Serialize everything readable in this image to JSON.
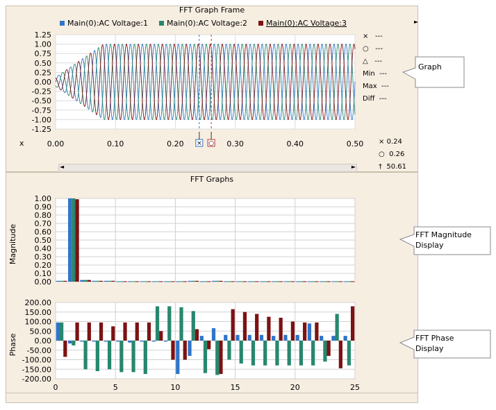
{
  "frame_title": "FFT Graph Frame",
  "legend": [
    {
      "label": "Main(0):AC Voltage:1",
      "color": "#2f74c8"
    },
    {
      "label": "Main(0):AC Voltage:2",
      "color": "#27876e"
    },
    {
      "label": "Main(0):AC Voltage:3",
      "color": "#7c1212"
    }
  ],
  "readouts": [
    {
      "symbol": "×",
      "value": "---"
    },
    {
      "symbol": "○",
      "value": "---"
    },
    {
      "symbol": "△",
      "value": "---"
    }
  ],
  "stats": [
    {
      "label": "Min",
      "value": "---"
    },
    {
      "label": "Max",
      "value": "---"
    },
    {
      "label": "Diff",
      "value": "---"
    }
  ],
  "x_axis_label": "x",
  "cursor_values": [
    {
      "symbol": "×",
      "value": "0.24"
    },
    {
      "symbol": "○",
      "value": "0.26"
    },
    {
      "symbol": "†",
      "value": "50.61"
    }
  ],
  "fft_title": "FFT Graphs",
  "magnitude_ylabel": "Magnitude",
  "phase_ylabel": "Phase",
  "callouts": {
    "graph": "Graph",
    "fft_mag": [
      "FFT Magnitude",
      "Display"
    ],
    "fft_phase": [
      "FFT Phase",
      "Display"
    ]
  },
  "chart_data": [
    {
      "type": "line",
      "title": "",
      "xlabel": "x",
      "ylabel": "",
      "xlim": [
        0,
        0.5
      ],
      "ylim": [
        -1.25,
        1.25
      ],
      "x_ticks": [
        "0.00",
        "0.10",
        "0.20",
        "0.30",
        "0.40",
        "0.50"
      ],
      "y_ticks": [
        "1.25",
        "1.00",
        "0.75",
        "0.50",
        "0.25",
        "0.00",
        "-0.25",
        "-0.50",
        "-0.75",
        "-1.00",
        "-1.25"
      ],
      "series": [
        {
          "name": "Main(0):AC Voltage:1",
          "amplitude": 1.0,
          "frequency": 50,
          "phase_deg": 0,
          "color": "#2f74c8"
        },
        {
          "name": "Main(0):AC Voltage:2",
          "amplitude": 1.0,
          "frequency": 50,
          "phase_deg": -120,
          "color": "#27876e"
        },
        {
          "name": "Main(0):AC Voltage:3",
          "amplitude": 1.0,
          "frequency": 50,
          "phase_deg": 120,
          "color": "#7c1212"
        }
      ],
      "cursors": [
        0.24,
        0.26
      ]
    },
    {
      "type": "bar",
      "title": "",
      "ylabel": "Magnitude",
      "xlim": [
        0,
        25
      ],
      "ylim": [
        0,
        1.0
      ],
      "y_ticks": [
        "1.00",
        "0.90",
        "0.80",
        "0.70",
        "0.60",
        "0.50",
        "0.40",
        "0.30",
        "0.20",
        "0.10",
        "0.00"
      ],
      "harmonics": [
        1,
        2,
        3,
        4,
        5,
        6,
        7,
        8,
        9,
        10,
        11,
        12,
        13,
        14,
        15,
        16,
        17,
        18,
        19,
        20,
        21,
        22,
        23,
        24,
        25
      ],
      "series": [
        {
          "name": "Main(0):AC Voltage:1",
          "values": [
            0.01,
            1.0,
            0.02,
            0.01,
            0.01,
            0.005,
            0.005,
            0.005,
            0.005,
            0.005,
            0.005,
            0.01,
            0.005,
            0.01,
            0.005,
            0.005,
            0.005,
            0.005,
            0.005,
            0.005,
            0.005,
            0.005,
            0.005,
            0.005,
            0.005
          ]
        },
        {
          "name": "Main(0):AC Voltage:2",
          "values": [
            0.01,
            1.0,
            0.02,
            0.01,
            0.01,
            0.005,
            0.005,
            0.005,
            0.005,
            0.005,
            0.005,
            0.01,
            0.005,
            0.01,
            0.005,
            0.005,
            0.005,
            0.005,
            0.005,
            0.005,
            0.005,
            0.005,
            0.005,
            0.005,
            0.005
          ]
        },
        {
          "name": "Main(0):AC Voltage:3",
          "values": [
            0.01,
            0.99,
            0.02,
            0.01,
            0.01,
            0.005,
            0.005,
            0.005,
            0.005,
            0.005,
            0.005,
            0.01,
            0.005,
            0.01,
            0.005,
            0.005,
            0.005,
            0.005,
            0.005,
            0.005,
            0.005,
            0.005,
            0.005,
            0.005,
            0.005
          ]
        }
      ]
    },
    {
      "type": "bar",
      "title": "",
      "ylabel": "Phase",
      "xlim": [
        0,
        25
      ],
      "ylim": [
        -200,
        200
      ],
      "x_ticks": [
        "0",
        "5",
        "10",
        "15",
        "20",
        "25"
      ],
      "y_ticks": [
        "200.00",
        "150.00",
        "100.00",
        "50.00",
        "0.00",
        "-50.00",
        "-100.00",
        "-150.00",
        "-200.00"
      ],
      "series": [
        {
          "name": "Main(0):AC Voltage:1",
          "values": [
            95,
            -15,
            -5,
            -5,
            -5,
            -5,
            -10,
            -5,
            -5,
            -5,
            -175,
            -80,
            25,
            65,
            30,
            30,
            30,
            30,
            25,
            30,
            30,
            90,
            25,
            25,
            25
          ]
        },
        {
          "name": "Main(0):AC Voltage:2",
          "values": [
            95,
            -25,
            -150,
            -160,
            -150,
            -165,
            -165,
            -175,
            180,
            180,
            175,
            155,
            -170,
            -180,
            -100,
            -120,
            -130,
            -130,
            -130,
            -130,
            -130,
            -130,
            -110,
            140,
            -130
          ]
        },
        {
          "name": "Main(0):AC Voltage:3",
          "values": [
            -85,
            95,
            95,
            95,
            75,
            95,
            95,
            95,
            50,
            -100,
            -100,
            60,
            -45,
            -175,
            165,
            150,
            140,
            125,
            120,
            100,
            95,
            95,
            -80,
            -145,
            180
          ]
        }
      ]
    }
  ]
}
